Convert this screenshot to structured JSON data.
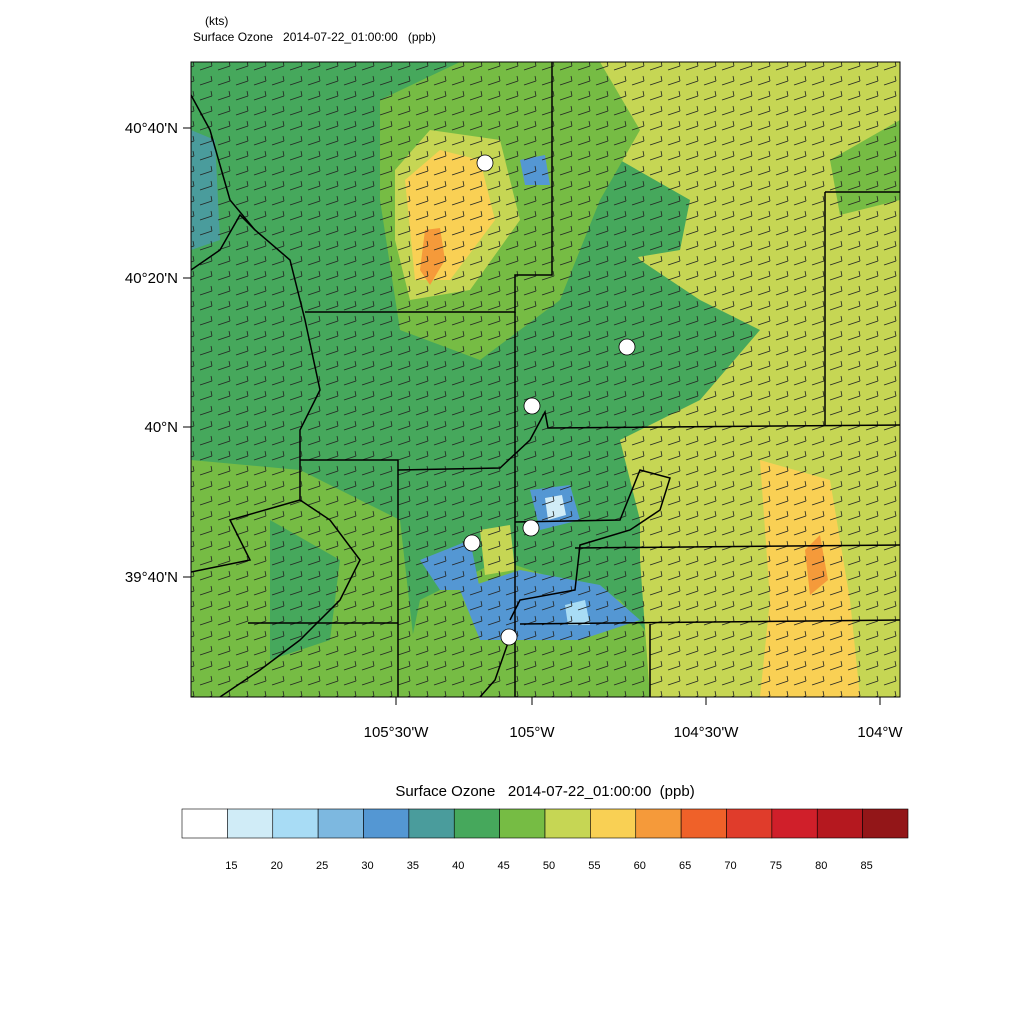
{
  "header": {
    "units": "(kts)",
    "title": "Surface Ozone   2014-07-22_01:00:00   (ppb)"
  },
  "map": {
    "lat_labels": [
      "40°40'N",
      "40°20'N",
      "40°N",
      "39°40'N"
    ],
    "lon_labels": [
      "105°30'W",
      "105°W",
      "104°30'W",
      "104°W"
    ]
  },
  "colorbar": {
    "title": "Surface Ozone   2014-07-22_01:00:00  (ppb)",
    "colors": [
      "#ffffff",
      "#d0ecf7",
      "#a8dcf5",
      "#7db8e0",
      "#5497d3",
      "#4a9c9c",
      "#46a85c",
      "#76bc44",
      "#c6d654",
      "#f9d054",
      "#f59a3a",
      "#ef6129",
      "#e03c2b",
      "#d01f2a",
      "#b5181f",
      "#931618"
    ],
    "labels": [
      "15",
      "20",
      "25",
      "30",
      "35",
      "40",
      "45",
      "50",
      "55",
      "60",
      "65",
      "70",
      "75",
      "80",
      "85"
    ]
  }
}
